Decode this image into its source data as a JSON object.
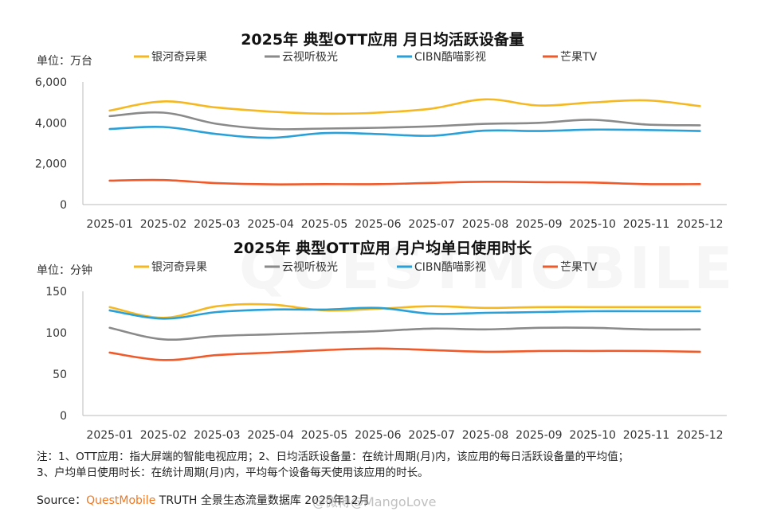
{
  "chart_data": [
    {
      "type": "line",
      "title": "2025年 典型OTT应用 月日均活跃设备量",
      "unit_label": "单位：万台",
      "categories": [
        "2025-01",
        "2025-02",
        "2025-03",
        "2025-04",
        "2025-05",
        "2025-06",
        "2025-07",
        "2025-08",
        "2025-09",
        "2025-10",
        "2025-11",
        "2025-12"
      ],
      "ylim": [
        0,
        6000
      ],
      "yticks": [
        "0",
        "2,000",
        "4,000",
        "6,000"
      ],
      "ytick_values": [
        0,
        2000,
        4000,
        6000
      ],
      "legend_position": "top",
      "series": [
        {
          "name": "银河奇异果",
          "color": "#f5b820",
          "values": [
            4600,
            5050,
            4750,
            4550,
            4450,
            4500,
            4700,
            5150,
            4850,
            5000,
            5100,
            4820
          ]
        },
        {
          "name": "云视听极光",
          "color": "#8a8a8a",
          "values": [
            4330,
            4500,
            3950,
            3700,
            3720,
            3760,
            3830,
            3950,
            4000,
            4150,
            3920,
            3880
          ]
        },
        {
          "name": "CIBN酷喵影视",
          "color": "#2aa0d8",
          "values": [
            3700,
            3800,
            3450,
            3270,
            3500,
            3450,
            3370,
            3620,
            3600,
            3670,
            3650,
            3600
          ]
        },
        {
          "name": "芒果TV",
          "color": "#f05a2a",
          "values": [
            1170,
            1200,
            1050,
            990,
            1000,
            1000,
            1060,
            1120,
            1100,
            1080,
            1000,
            1000
          ]
        }
      ]
    },
    {
      "type": "line",
      "title": "2025年 典型OTT应用 月户均单日使用时长",
      "unit_label": "单位：分钟",
      "categories": [
        "2025-01",
        "2025-02",
        "2025-03",
        "2025-04",
        "2025-05",
        "2025-06",
        "2025-07",
        "2025-08",
        "2025-09",
        "2025-10",
        "2025-11",
        "2025-12"
      ],
      "ylim": [
        0,
        150
      ],
      "yticks": [
        "0",
        "50",
        "100",
        "150"
      ],
      "ytick_values": [
        0,
        50,
        100,
        150
      ],
      "legend_position": "top",
      "series": [
        {
          "name": "银河奇异果",
          "color": "#f5b820",
          "values": [
            131,
            118,
            132,
            134,
            127,
            129,
            132,
            130,
            131,
            131,
            131,
            131
          ]
        },
        {
          "name": "云视听极光",
          "color": "#8a8a8a",
          "values": [
            106,
            92,
            96,
            98,
            100,
            102,
            105,
            104,
            106,
            106,
            104,
            104
          ]
        },
        {
          "name": "CIBN酷喵影视",
          "color": "#2aa0d8",
          "values": [
            127,
            117,
            125,
            128,
            128,
            130,
            123,
            124,
            125,
            126,
            126,
            126
          ]
        },
        {
          "name": "芒果TV",
          "color": "#f05a2a",
          "values": [
            76,
            67,
            73,
            76,
            79,
            81,
            79,
            77,
            78,
            78,
            78,
            77
          ]
        }
      ]
    }
  ],
  "notes": {
    "line1": "注：1、OTT应用：指大屏端的智能电视应用；2、日均活跃设备量：在统计周期(月)内，该应用的每日活跃设备量的平均值；",
    "line2": "3、户均单日使用时长：在统计周期(月)内，平均每个设备每天使用该应用的时长。"
  },
  "source": {
    "prefix": "Source：",
    "brand": "QuestMobile",
    "suffix": " TRUTH 全景生态流量数据库 2025年12月"
  },
  "watermark_text": "@微博@MangoLove",
  "background_watermark": "QUESTMOBILE"
}
